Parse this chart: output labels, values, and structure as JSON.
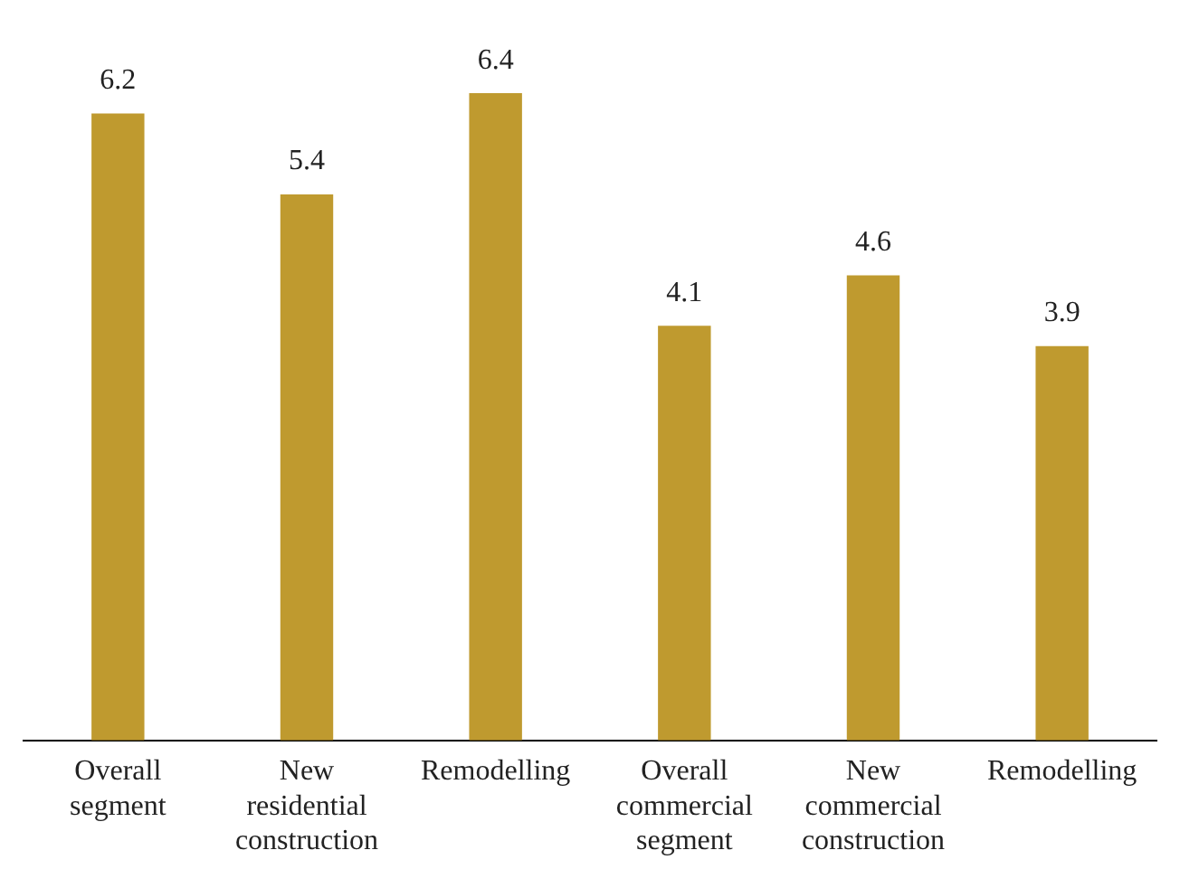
{
  "chart_data": {
    "type": "bar",
    "categories": [
      "Overall segment",
      "New residential construction",
      "Remodelling",
      "Overall commercial segment",
      "New commercial construction",
      "Remodelling"
    ],
    "values": [
      6.2,
      5.4,
      6.4,
      4.1,
      4.6,
      3.9
    ],
    "color": "#bf9a2f",
    "data_labels": true,
    "grid": false,
    "legend": false
  }
}
